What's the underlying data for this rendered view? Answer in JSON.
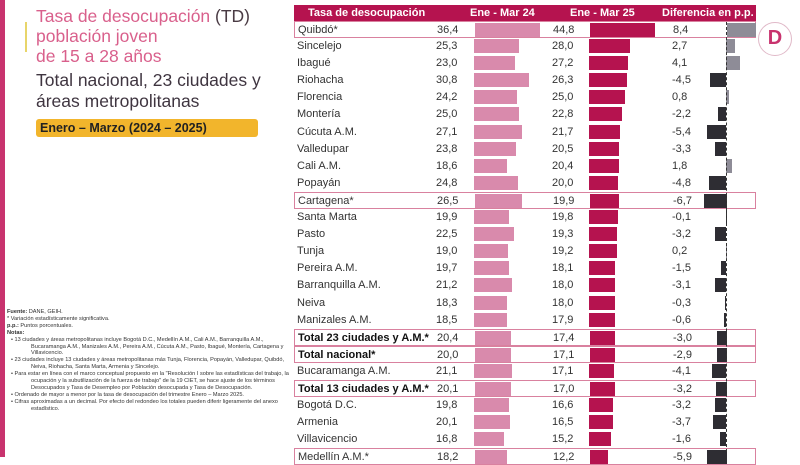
{
  "title": {
    "line1a": "Tasa de desocupación",
    "line1b": "(TD)",
    "line2": "población joven",
    "line3": "de 15 a 28 años",
    "sub1": "Total nacional, 23 ciudades y",
    "sub2": "áreas metropolitanas",
    "period": "Enero – Marzo (2024 – 2025)"
  },
  "logo": "D",
  "notes": {
    "fuente_label": "Fuente:",
    "fuente": "DANE, GEIH.",
    "sig": "* Variación estadísticamente significativa.",
    "pp_label": "p.p.:",
    "pp": "Puntos porcentuales.",
    "notas_label": "Notas:",
    "items": [
      "• 13 ciudades y áreas metropolitanas incluye Bogotá D.C., Medellín A.M., Cali A.M., Barranquilla A.M., Bucaramanga A.M., Manizales A.M., Pereira A.M., Cúcuta A.M., Pasto, Ibagué, Montería, Cartagena y Villavicencio.",
      "• 23 ciudades incluye 13 ciudades y áreas metropolitanas más Tunja, Florencia, Popayán, Valledupar, Quibdó, Neiva, Riohacha, Santa Marta, Armenia y Sincelejo.",
      "• Para estar en línea con el marco conceptual propuesto en la \"Resolución I sobre las estadísticas del trabajo, la ocupación y la subutilización de la fuerza de trabajo\" de la 19 CIET, se hace ajuste de los términos Desocupados y Tasa de Desempleo por Población desocupada y Tasa de Desocupación.",
      "• Ordenado de mayor a menor por la tasa de desocupación del trimestre Enero – Marzo 2025.",
      "• Cifras aproximadas a un decimal. Por efecto del redondeo los totales pueden diferir ligeramente del anexo estadístico."
    ]
  },
  "chart_data": {
    "type": "table",
    "columns": [
      "Tasa de desocupación",
      "Ene - Mar 24",
      "Ene - Mar 25",
      "Diferencia en p.p."
    ],
    "colors": {
      "ene_mar_24": "#d98aac",
      "ene_mar_25": "#b5134f",
      "diff_positive": "#8e8c97",
      "diff_negative": "#2e2d33",
      "highlight": "#d9819f"
    },
    "rows": [
      {
        "name": "Quibdó*",
        "v24": "36,4",
        "v25": "44,8",
        "diff": "8,4",
        "highlight": true,
        "bold": false
      },
      {
        "name": "Sincelejo",
        "v24": "25,3",
        "v25": "28,0",
        "diff": "2,7"
      },
      {
        "name": "Ibagué",
        "v24": "23,0",
        "v25": "27,2",
        "diff": "4,1"
      },
      {
        "name": "Riohacha",
        "v24": "30,8",
        "v25": "26,3",
        "diff": "-4,5"
      },
      {
        "name": "Florencia",
        "v24": "24,2",
        "v25": "25,0",
        "diff": "0,8"
      },
      {
        "name": "Montería",
        "v24": "25,0",
        "v25": "22,8",
        "diff": "-2,2"
      },
      {
        "name": "Cúcuta A.M.",
        "v24": "27,1",
        "v25": "21,7",
        "diff": "-5,4"
      },
      {
        "name": "Valledupar",
        "v24": "23,8",
        "v25": "20,5",
        "diff": "-3,3"
      },
      {
        "name": "Cali A.M.",
        "v24": "18,6",
        "v25": "20,4",
        "diff": "1,8"
      },
      {
        "name": "Popayán",
        "v24": "24,8",
        "v25": "20,0",
        "diff": "-4,8"
      },
      {
        "name": "Cartagena*",
        "v24": "26,5",
        "v25": "19,9",
        "diff": "-6,7",
        "highlight": true
      },
      {
        "name": "Santa Marta",
        "v24": "19,9",
        "v25": "19,8",
        "diff": "-0,1"
      },
      {
        "name": "Pasto",
        "v24": "22,5",
        "v25": "19,3",
        "diff": "-3,2"
      },
      {
        "name": "Tunja",
        "v24": "19,0",
        "v25": "19,2",
        "diff": "0,2"
      },
      {
        "name": "Pereira A.M.",
        "v24": "19,7",
        "v25": "18,1",
        "diff": "-1,5"
      },
      {
        "name": "Barranquilla A.M.",
        "v24": "21,2",
        "v25": "18,0",
        "diff": "-3,1"
      },
      {
        "name": "Neiva",
        "v24": "18,3",
        "v25": "18,0",
        "diff": "-0,3"
      },
      {
        "name": "Manizales A.M.",
        "v24": "18,5",
        "v25": "17,9",
        "diff": "-0,6"
      },
      {
        "name": "Total 23 ciudades y A.M.*",
        "v24": "20,4",
        "v25": "17,4",
        "diff": "-3,0",
        "highlight": true,
        "bold": true
      },
      {
        "name": "Total nacional*",
        "v24": "20,0",
        "v25": "17,1",
        "diff": "-2,9",
        "highlight": true,
        "bold": true
      },
      {
        "name": "Bucaramanga A.M.",
        "v24": "21,1",
        "v25": "17,1",
        "diff": "-4,1"
      },
      {
        "name": "Total 13 ciudades y A.M.*",
        "v24": "20,1",
        "v25": "17,0",
        "diff": "-3,2",
        "highlight": true,
        "bold": true
      },
      {
        "name": "Bogotá D.C.",
        "v24": "19,8",
        "v25": "16,6",
        "diff": "-3,2"
      },
      {
        "name": "Armenia",
        "v24": "20,1",
        "v25": "16,5",
        "diff": "-3,7"
      },
      {
        "name": "Villavicencio",
        "v24": "16,8",
        "v25": "15,2",
        "diff": "-1,6"
      },
      {
        "name": "Medellín A.M.*",
        "v24": "18,2",
        "v25": "12,2",
        "diff": "-5,9",
        "highlight": true
      }
    ]
  }
}
